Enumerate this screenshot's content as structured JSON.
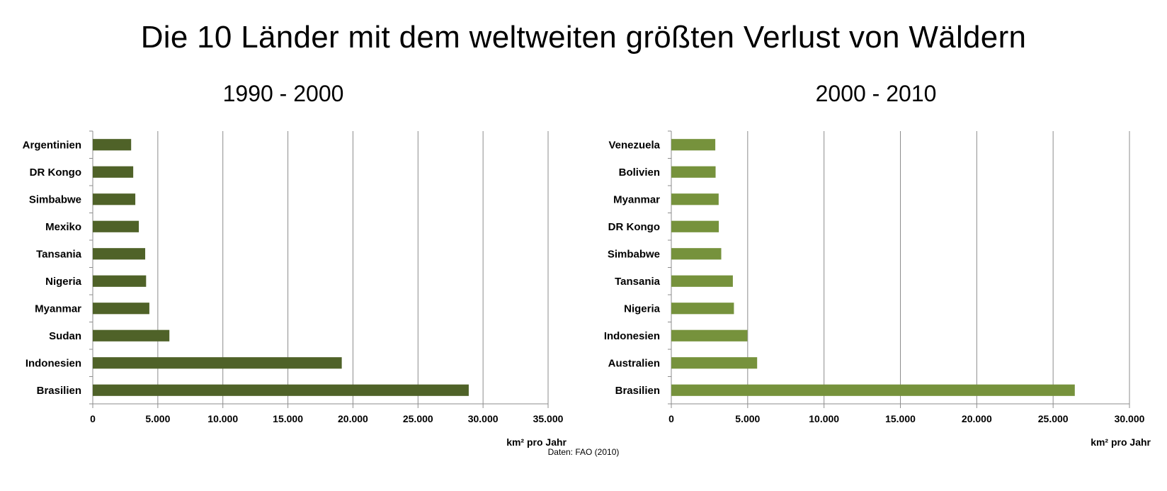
{
  "title": "Die 10 Länder mit dem weltweiten größten Verlust von Wäldern",
  "source": "Daten: FAO (2010)",
  "chart_data": [
    {
      "type": "bar",
      "orientation": "horizontal",
      "title": "1990 - 2000",
      "xlabel": "km² pro Jahr",
      "ylabel": "",
      "categories": [
        "Argentinien",
        "DR Kongo",
        "Simbabwe",
        "Mexiko",
        "Tansania",
        "Nigeria",
        "Myanmar",
        "Sudan",
        "Indonesien",
        "Brasilien"
      ],
      "values": [
        2950,
        3110,
        3270,
        3540,
        4030,
        4100,
        4350,
        5890,
        19140,
        28900
      ],
      "xlim": [
        0,
        35000
      ],
      "ticks": [
        0,
        5000,
        10000,
        15000,
        20000,
        25000,
        30000,
        35000
      ],
      "tick_labels": [
        "0",
        "5.000",
        "10.000",
        "15.000",
        "20.000",
        "25.000",
        "30.000",
        "35.000"
      ],
      "grid": "vertical",
      "color": "#4f6228"
    },
    {
      "type": "bar",
      "orientation": "horizontal",
      "title": "2000 - 2010",
      "xlabel": "km² pro Jahr",
      "ylabel": "",
      "categories": [
        "Venezuela",
        "Bolivien",
        "Myanmar",
        "DR Kongo",
        "Simbabwe",
        "Tansania",
        "Nigeria",
        "Indonesien",
        "Australien",
        "Brasilien"
      ],
      "values": [
        2880,
        2900,
        3100,
        3110,
        3270,
        4030,
        4100,
        4980,
        5620,
        26420
      ],
      "xlim": [
        0,
        30000
      ],
      "ticks": [
        0,
        5000,
        10000,
        15000,
        20000,
        25000,
        30000
      ],
      "tick_labels": [
        "0",
        "5.000",
        "10.000",
        "15.000",
        "20.000",
        "25.000",
        "30.000"
      ],
      "grid": "vertical",
      "color": "#76923c"
    }
  ]
}
